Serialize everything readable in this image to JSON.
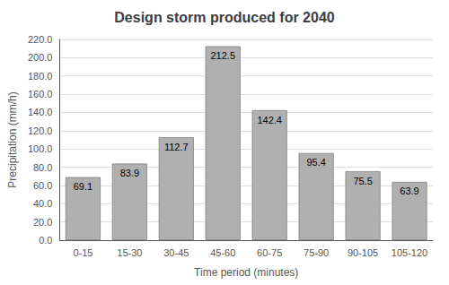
{
  "chart_data": {
    "type": "bar",
    "title": "Design storm produced for 2040",
    "xlabel": "Time period (minutes)",
    "ylabel": "Precipitation (mm/h)",
    "categories": [
      "0-15",
      "15-30",
      "30-45",
      "45-60",
      "60-75",
      "75-90",
      "90-105",
      "105-120"
    ],
    "values": [
      69.1,
      83.9,
      112.7,
      212.5,
      142.4,
      95.4,
      75.5,
      63.9
    ],
    "color": "#b0b0b0",
    "ylim": [
      0,
      220.0
    ],
    "yticks": [
      {
        "value": 0,
        "label": "0.0"
      },
      {
        "value": 20,
        "label": "20.0"
      },
      {
        "value": 40,
        "label": "40.0"
      },
      {
        "value": 60,
        "label": "60.0"
      },
      {
        "value": 80,
        "label": "80.0"
      },
      {
        "value": 100,
        "label": "100.0"
      },
      {
        "value": 120,
        "label": "120.0"
      },
      {
        "value": 140,
        "label": "140.0"
      },
      {
        "value": 160,
        "label": "160.0"
      },
      {
        "value": 180,
        "label": "180.0"
      },
      {
        "value": 200,
        "label": "200.0"
      },
      {
        "value": 220,
        "label": "220.0"
      }
    ],
    "grid": true,
    "data_labels": true
  }
}
